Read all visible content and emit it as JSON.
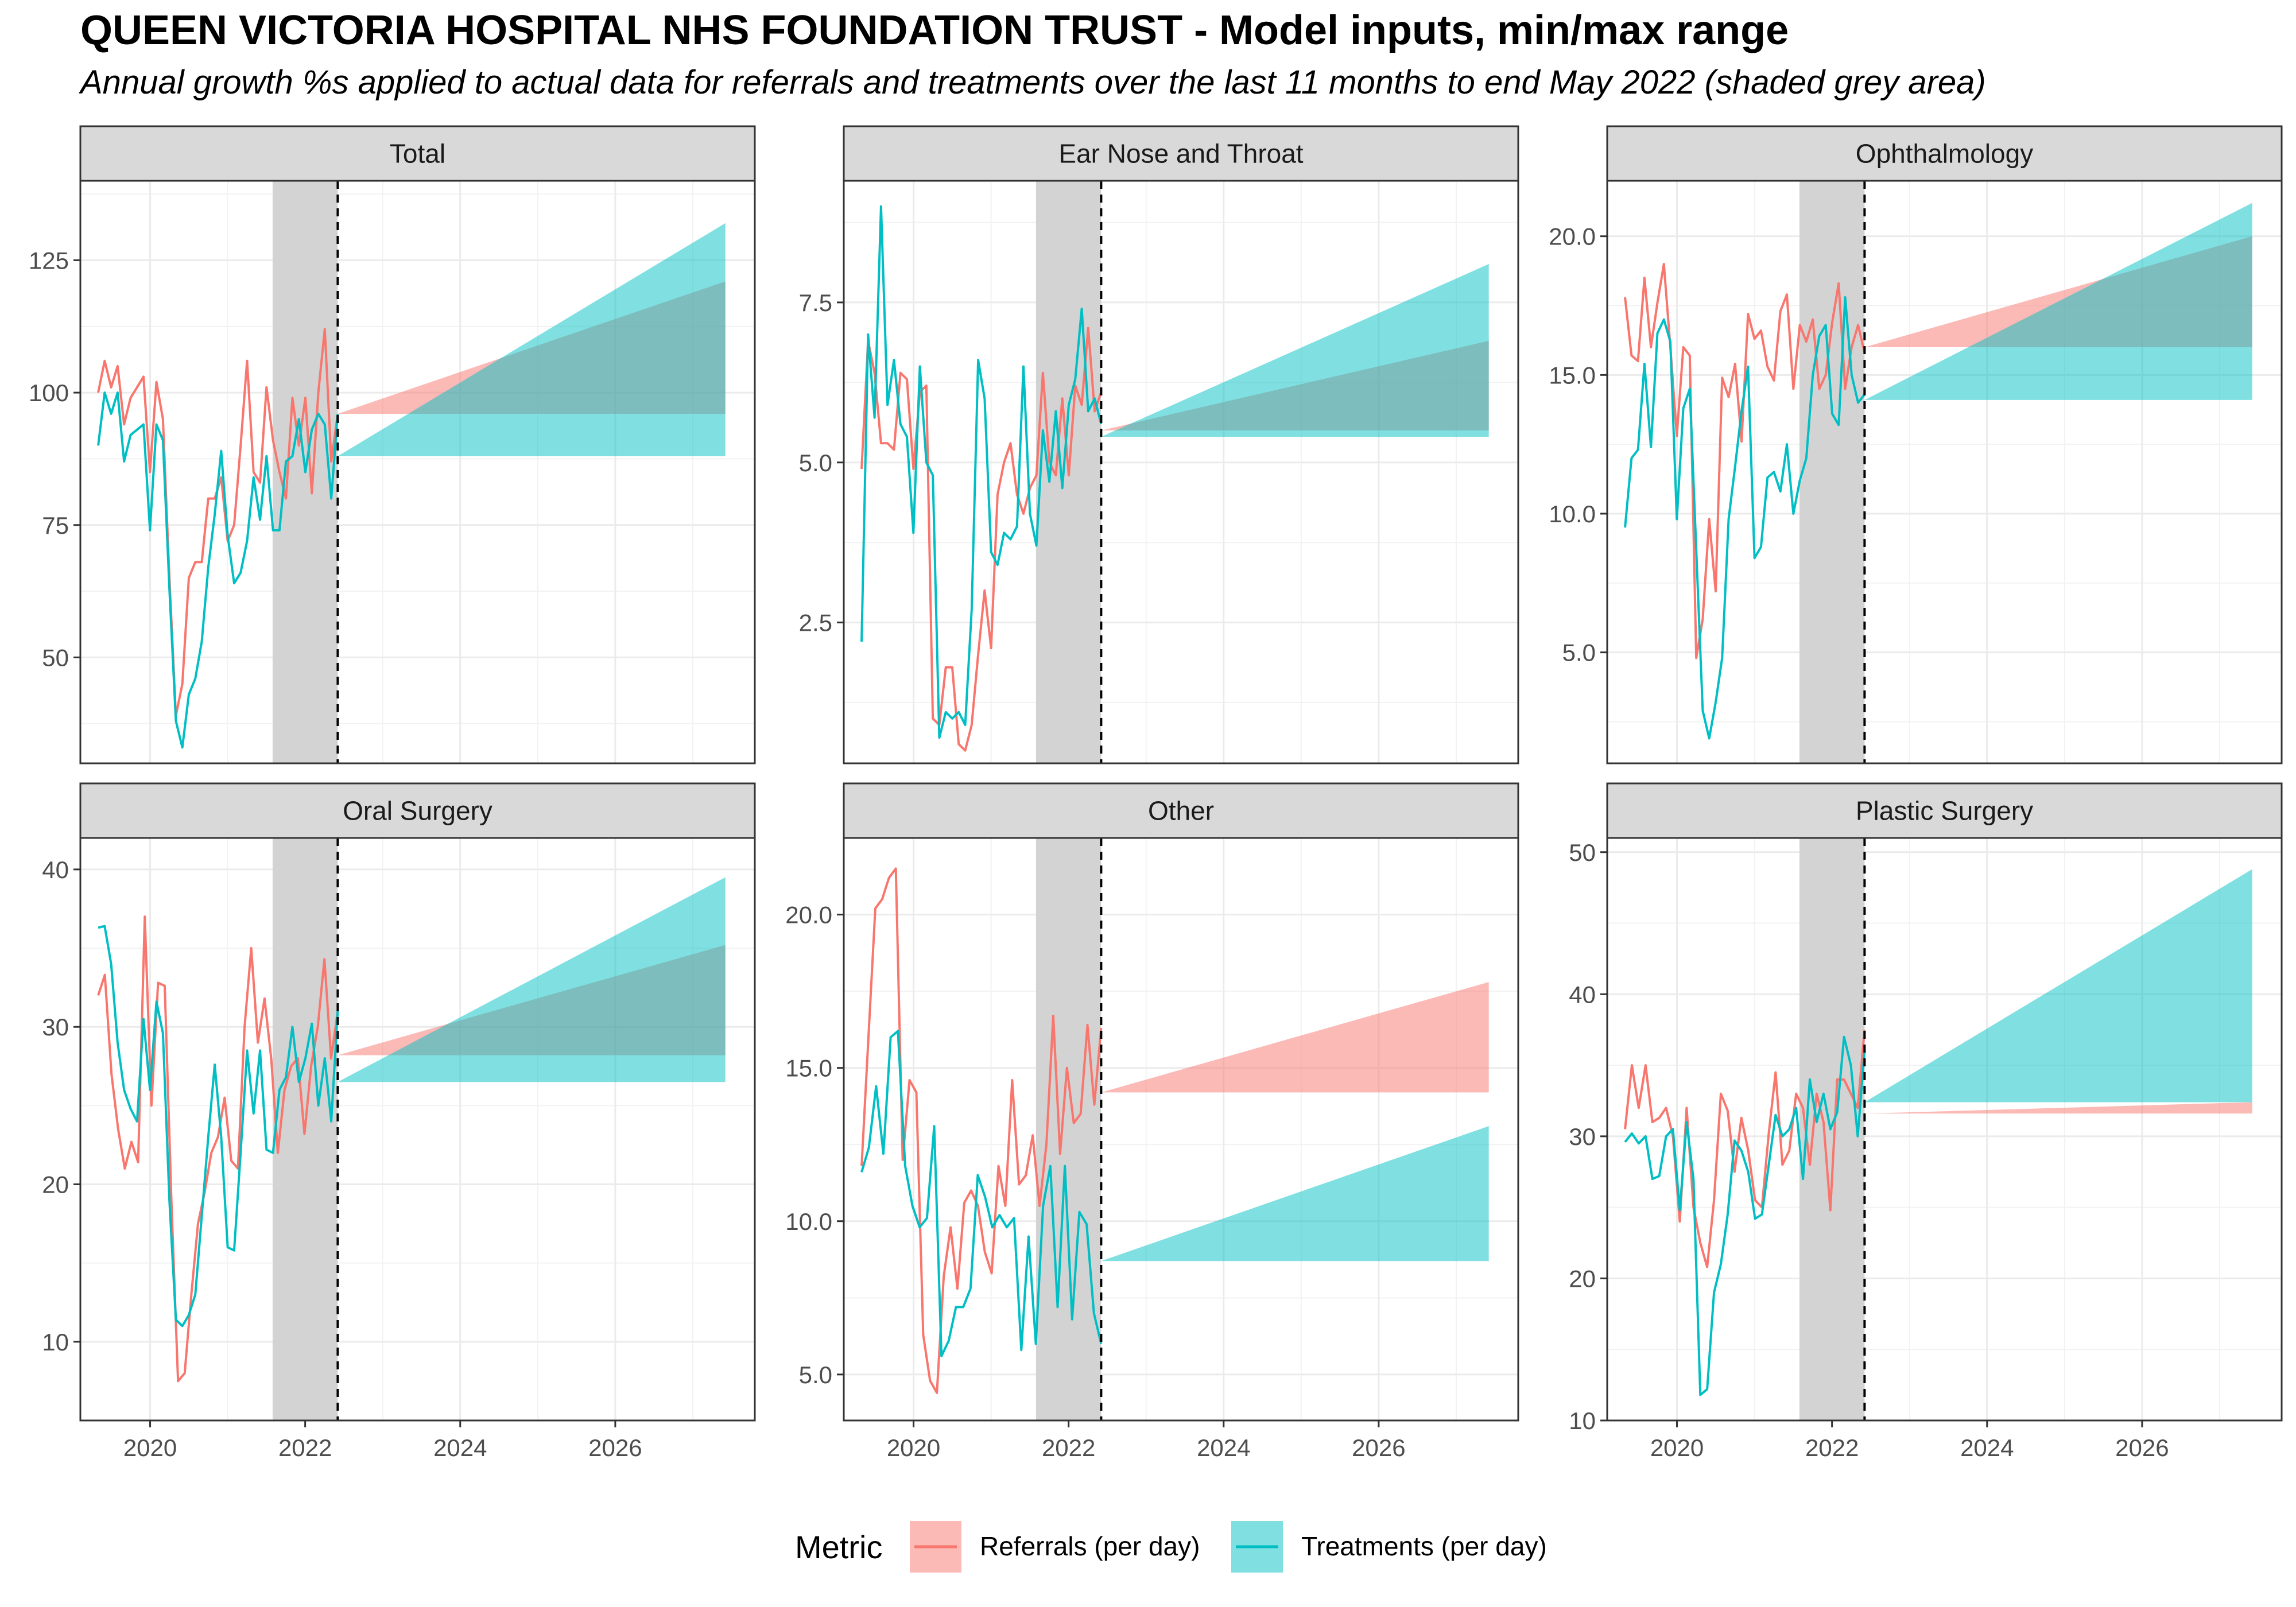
{
  "title": "QUEEN VICTORIA HOSPITAL NHS FOUNDATION TRUST - Model inputs, min/max range",
  "subtitle": "Annual growth %s applied to actual data for referrals and treatments over the last 11 months to end May 2022 (shaded grey area)",
  "colors": {
    "referrals": "#F8766D",
    "treatments": "#00BFC4",
    "shade": "#D3D3D3",
    "strip": "#D9D9D9"
  },
  "legend": {
    "title": "Metric",
    "items": [
      {
        "label": "Referrals (per day)",
        "color": "#F8766D"
      },
      {
        "label": "Treatments (per day)",
        "color": "#00BFC4"
      }
    ]
  },
  "chart_data": {
    "type": "line",
    "x_axis": {
      "ticks": [
        2020,
        2022,
        2024,
        2026
      ],
      "xlim": [
        2019.1,
        2027.8
      ]
    },
    "shaded_period": [
      2021.58,
      2022.42
    ],
    "forecast_start": 2022.42,
    "forecast_end": 2027.42,
    "series_names": [
      "Referrals (per day)",
      "Treatments (per day)"
    ],
    "panels": [
      {
        "name": "Total",
        "ylim": [
          30,
          140
        ],
        "yticks": [
          50,
          75,
          100,
          125
        ],
        "tick_labels": [
          "50",
          "75",
          "100",
          "125"
        ],
        "referrals": [
          100,
          106,
          101,
          105,
          94,
          99,
          101,
          103,
          85,
          102,
          95,
          65,
          39,
          45,
          65,
          68,
          68,
          80,
          80,
          84,
          72,
          75,
          90,
          106,
          85,
          83,
          101,
          91,
          85,
          80,
          99,
          90,
          99,
          81,
          100,
          112,
          87,
          96
        ],
        "treatments": [
          90,
          100,
          96,
          100,
          87,
          92,
          93,
          94,
          74,
          94,
          91,
          63,
          38,
          33,
          43,
          46,
          53,
          67,
          77,
          89,
          73,
          64,
          66,
          72,
          84,
          76,
          88,
          74,
          74,
          87,
          88,
          95,
          85,
          93,
          96,
          94,
          80,
          96
        ],
        "ribbons": {
          "referrals": {
            "start": 96,
            "min_end": 96,
            "max_end": 121
          },
          "treatments": {
            "start": 88,
            "min_end": 88,
            "max_end": 132
          }
        }
      },
      {
        "name": "Ear Nose and Throat",
        "ylim": [
          0.3,
          9.4
        ],
        "yticks": [
          2.5,
          5.0,
          7.5
        ],
        "tick_labels": [
          "2.5",
          "5.0",
          "7.5"
        ],
        "referrals": [
          4.9,
          6.9,
          6.4,
          5.3,
          5.3,
          5.2,
          6.4,
          6.3,
          4.9,
          6.1,
          6.2,
          1.0,
          0.9,
          1.8,
          1.8,
          0.6,
          0.5,
          0.9,
          2.0,
          3.0,
          2.1,
          4.5,
          5.0,
          5.3,
          4.5,
          4.2,
          4.6,
          4.8,
          6.4,
          5.0,
          4.8,
          6.0,
          4.8,
          6.2,
          5.9,
          7.1,
          5.8,
          6.1
        ],
        "treatments": [
          2.2,
          7.0,
          5.7,
          9.0,
          5.9,
          6.6,
          5.6,
          5.4,
          3.9,
          6.5,
          5.0,
          4.8,
          0.7,
          1.1,
          1.0,
          1.1,
          0.9,
          2.7,
          6.6,
          6.0,
          3.6,
          3.4,
          3.9,
          3.8,
          4.0,
          6.5,
          4.2,
          3.7,
          5.5,
          4.7,
          5.8,
          4.6,
          5.9,
          6.3,
          7.4,
          5.8,
          6.0,
          5.6
        ],
        "ribbons": {
          "referrals": {
            "start": 5.5,
            "min_end": 5.5,
            "max_end": 6.9
          },
          "treatments": {
            "start": 5.4,
            "min_end": 5.4,
            "max_end": 8.1
          }
        }
      },
      {
        "name": "Ophthalmology",
        "ylim": [
          1,
          22
        ],
        "yticks": [
          5.0,
          10.0,
          15.0,
          20.0
        ],
        "tick_labels": [
          "5.0",
          "10.0",
          "15.0",
          "20.0"
        ],
        "referrals": [
          17.8,
          15.7,
          15.5,
          18.5,
          16.0,
          17.6,
          19.0,
          16.0,
          12.8,
          16.0,
          15.7,
          4.8,
          6.2,
          9.8,
          7.2,
          14.9,
          14.2,
          15.4,
          12.6,
          17.2,
          16.3,
          16.6,
          15.3,
          14.8,
          17.3,
          17.9,
          14.5,
          16.8,
          16.2,
          17.0,
          14.5,
          15.0,
          16.9,
          18.3,
          14.5,
          16.0,
          16.8,
          15.8
        ],
        "treatments": [
          9.5,
          12.0,
          12.3,
          15.4,
          12.4,
          16.5,
          17.0,
          16.2,
          9.8,
          13.8,
          14.5,
          8.7,
          2.9,
          1.9,
          3.2,
          4.8,
          9.8,
          11.7,
          13.7,
          15.3,
          8.4,
          8.8,
          11.3,
          11.5,
          10.8,
          12.5,
          10.0,
          11.2,
          12.0,
          15.0,
          16.4,
          16.8,
          13.6,
          13.2,
          17.8,
          15.0,
          14.0,
          14.3
        ],
        "ribbons": {
          "referrals": {
            "start": 16.0,
            "min_end": 16.0,
            "max_end": 20.0
          },
          "treatments": {
            "start": 14.1,
            "min_end": 14.1,
            "max_end": 21.2
          }
        }
      },
      {
        "name": "Oral Surgery",
        "ylim": [
          5,
          42
        ],
        "yticks": [
          10,
          20,
          30,
          40
        ],
        "tick_labels": [
          "10",
          "20",
          "30",
          "40"
        ],
        "referrals": [
          32,
          33.3,
          27,
          23.5,
          21,
          22.7,
          21.4,
          37,
          25,
          32.8,
          32.6,
          19,
          7.5,
          8,
          13,
          17.5,
          19.5,
          22,
          23,
          25.5,
          21.5,
          21,
          30,
          35,
          29,
          31.8,
          28,
          22,
          26,
          27.5,
          28,
          23.2,
          27.5,
          30,
          34.3,
          28,
          31
        ],
        "treatments": [
          36.3,
          36.4,
          34,
          29,
          26,
          24.8,
          24,
          30.5,
          26,
          31.6,
          29.6,
          19,
          11.4,
          11,
          11.7,
          13,
          18,
          23,
          27.6,
          23,
          16,
          15.8,
          22,
          28.5,
          24.5,
          28.5,
          22.2,
          22,
          26,
          26.8,
          30,
          26.5,
          28,
          30.2,
          25,
          28,
          24,
          31
        ],
        "ribbons": {
          "referrals": {
            "start": 28.2,
            "min_end": 28.2,
            "max_end": 35.2
          },
          "treatments": {
            "start": 26.5,
            "min_end": 26.5,
            "max_end": 39.5
          }
        }
      },
      {
        "name": "Other",
        "ylim": [
          3.5,
          22.5
        ],
        "yticks": [
          5.0,
          10.0,
          15.0,
          20.0
        ],
        "tick_labels": [
          "5.0",
          "10.0",
          "15.0",
          "20.0"
        ],
        "referrals": [
          11.8,
          16,
          20.2,
          20.5,
          21.2,
          21.5,
          12,
          14.6,
          14.2,
          6.3,
          4.8,
          4.4,
          8.2,
          9.8,
          7.8,
          10.6,
          11,
          10.5,
          9,
          8.3,
          11.8,
          10.5,
          14.6,
          11.2,
          11.5,
          12.8,
          10.5,
          12.5,
          16.7,
          12.2,
          15,
          13.2,
          13.5,
          16.4,
          13.8,
          16.3
        ],
        "treatments": [
          11.6,
          12.4,
          14.4,
          12.2,
          16,
          16.2,
          11.8,
          10.5,
          9.8,
          10.1,
          13.1,
          5.6,
          6.1,
          7.2,
          7.2,
          7.8,
          11.5,
          10.8,
          9.8,
          10.2,
          9.8,
          10.1,
          5.8,
          9.5,
          6,
          10.5,
          11.8,
          7.2,
          11.8,
          6.8,
          10.3,
          9.9,
          7,
          6
        ],
        "ribbons": {
          "referrals": {
            "start": 14.2,
            "min_end": 14.2,
            "max_end": 17.8
          },
          "treatments": {
            "start": 8.7,
            "min_end": 8.7,
            "max_end": 13.1
          }
        }
      },
      {
        "name": "Plastic Surgery",
        "ylim": [
          10,
          51
        ],
        "yticks": [
          10,
          20,
          30,
          40,
          50
        ],
        "tick_labels": [
          "10",
          "20",
          "30",
          "40",
          "50"
        ],
        "referrals": [
          30.5,
          35,
          32,
          35,
          31,
          31.3,
          32,
          30,
          24,
          32,
          25,
          22.5,
          20.8,
          25.5,
          33,
          31.8,
          27.5,
          31.3,
          29,
          25.5,
          25,
          30.2,
          34.5,
          28,
          29,
          33,
          32,
          28,
          33,
          31,
          24.8,
          34,
          34,
          33,
          32,
          37.5
        ],
        "treatments": [
          29.6,
          30.2,
          29.5,
          30,
          27,
          27.2,
          30,
          30.5,
          24.8,
          31,
          27,
          11.8,
          12.2,
          19,
          21,
          24.5,
          29.7,
          29,
          27.5,
          24.2,
          24.5,
          28,
          31.5,
          30,
          30.5,
          32,
          27,
          34,
          31,
          33,
          30.5,
          31.7,
          37,
          35,
          30,
          36
        ],
        "ribbons": {
          "referrals": {
            "start": 31.6,
            "min_end": 31.6,
            "max_end": 32.4
          },
          "treatments": {
            "start": 32.4,
            "min_end": 32.4,
            "max_end": 48.8
          }
        }
      }
    ]
  }
}
